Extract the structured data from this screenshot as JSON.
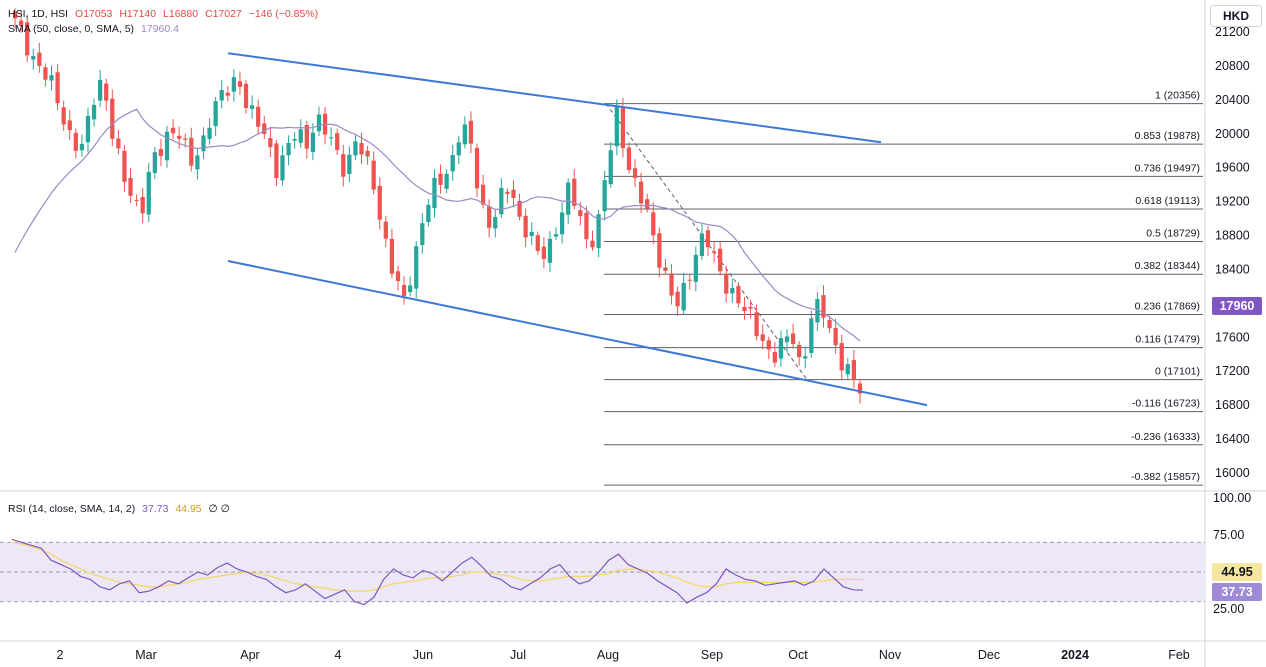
{
  "currency": "HKD",
  "legend_main": {
    "symbol": "HSI, 1D, HSI",
    "open": "O17053",
    "high": "H17140",
    "low": "L16880",
    "close": "C17027",
    "change": "−146 (−0.85%)"
  },
  "legend_sma": {
    "label": "SMA (50, close, 0, SMA, 5)",
    "value": "17960.4"
  },
  "legend_rsi": {
    "label": "RSI (14, close, SMA, 14, 2)",
    "rsi": "37.73",
    "sma": "44.95",
    "extra": "∅ ∅"
  },
  "price_tag": "17960",
  "rsi_tags": {
    "sma": "44.95",
    "rsi": "37.73"
  },
  "colors": {
    "up": "#26a69a",
    "down": "#ef5350",
    "sma": "#9b89c4",
    "channel": "#3d78d8",
    "rsi": "#7e57c2",
    "rsi_sma": "#f5d76e",
    "rsi_band": "#ede7f6"
  },
  "chart_data": [
    {
      "type": "candlestick",
      "x_ticks": [
        "2",
        "Mar",
        "Apr",
        "4",
        "Jun",
        "Jul",
        "Aug",
        "Sep",
        "Oct",
        "Nov",
        "Dec",
        "2024",
        "Feb"
      ],
      "y_ticks": [
        "21200",
        "20800",
        "20400",
        "20000",
        "19600",
        "19200",
        "18800",
        "18400",
        "18000",
        "17600",
        "17200",
        "16800",
        "16400",
        "16000"
      ],
      "ylim": [
        15700,
        21400
      ],
      "close_path": [
        21300,
        21100,
        20900,
        20700,
        20500,
        20200,
        19900,
        19800,
        20400,
        20700,
        20000,
        19500,
        19300,
        19100,
        19600,
        19800,
        20100,
        20000,
        19600,
        19800,
        20200,
        20400,
        20500,
        20700,
        20300,
        20100,
        19900,
        19600,
        19800,
        20000,
        19900,
        20200,
        20000,
        19800,
        19600,
        19900,
        19700,
        19400,
        18800,
        18300,
        18000,
        18500,
        19000,
        19300,
        19500,
        19700,
        20100,
        19800,
        19200,
        18900,
        19200,
        19400,
        19000,
        18800,
        18500,
        18700,
        19000,
        19300,
        19100,
        18700,
        18900,
        19600,
        20300,
        19700,
        19300,
        19100,
        18700,
        18300,
        17900,
        18200,
        18600,
        18800,
        18500,
        18300,
        18100,
        17900,
        17800,
        17600,
        17300,
        17500,
        17700,
        17200,
        17800,
        18000,
        17700,
        17300,
        17100,
        17027
      ],
      "sma50_label": "17960.4",
      "channel": {
        "upper": [
          [
            20950,
            "start"
          ],
          [
            19900,
            "end"
          ]
        ],
        "lower": [
          [
            18500,
            "start"
          ],
          [
            16800,
            "end"
          ]
        ]
      },
      "fib_levels": [
        {
          "ratio": "1",
          "value": "20356"
        },
        {
          "ratio": "0.853",
          "value": "19878"
        },
        {
          "ratio": "0.736",
          "value": "19497"
        },
        {
          "ratio": "0.618",
          "value": "19113"
        },
        {
          "ratio": "0.5",
          "value": "18729"
        },
        {
          "ratio": "0.382",
          "value": "18344"
        },
        {
          "ratio": "0.236",
          "value": "17869"
        },
        {
          "ratio": "0.116",
          "value": "17479"
        },
        {
          "ratio": "0",
          "value": "17101"
        },
        {
          "ratio": "-0.116",
          "value": "16723"
        },
        {
          "ratio": "-0.236",
          "value": "16333"
        },
        {
          "ratio": "-0.382",
          "value": "15857"
        }
      ]
    },
    {
      "type": "line",
      "y_ticks": [
        "100.00",
        "75.00",
        "25.00"
      ],
      "ylim": [
        15,
        103
      ],
      "band": [
        30,
        70
      ],
      "mid": 50,
      "rsi": [
        72,
        70,
        68,
        66,
        58,
        55,
        52,
        47,
        45,
        40,
        38,
        42,
        44,
        36,
        37,
        40,
        44,
        42,
        46,
        50,
        48,
        53,
        56,
        52,
        50,
        47,
        45,
        40,
        36,
        38,
        42,
        37,
        32,
        35,
        38,
        30,
        28,
        33,
        45,
        52,
        48,
        46,
        51,
        49,
        44,
        50,
        56,
        60,
        54,
        47,
        45,
        40,
        38,
        42,
        46,
        52,
        55,
        47,
        42,
        44,
        50,
        58,
        62,
        55,
        52,
        49,
        44,
        40,
        36,
        29,
        33,
        36,
        42,
        52,
        48,
        45,
        44,
        41,
        42,
        43,
        44,
        41,
        44,
        52,
        46,
        40,
        38,
        37.73
      ],
      "rsi_sma": [
        70,
        69,
        67,
        65,
        62,
        58,
        55,
        52,
        49,
        47,
        45,
        43,
        42,
        41,
        40,
        40,
        41,
        42,
        43,
        45,
        46,
        47,
        48,
        49,
        50,
        49,
        48,
        46,
        44,
        42,
        41,
        40,
        39,
        38,
        37,
        37,
        37,
        38,
        40,
        42,
        43,
        44,
        45,
        46,
        46,
        47,
        48,
        50,
        50,
        49,
        48,
        47,
        45,
        44,
        44,
        45,
        46,
        47,
        47,
        47,
        48,
        49,
        51,
        52,
        52,
        51,
        50,
        48,
        46,
        43,
        41,
        40,
        40,
        42,
        43,
        43,
        43,
        43,
        43,
        43,
        43,
        43,
        43,
        44,
        45,
        45,
        45,
        44.95
      ]
    }
  ]
}
